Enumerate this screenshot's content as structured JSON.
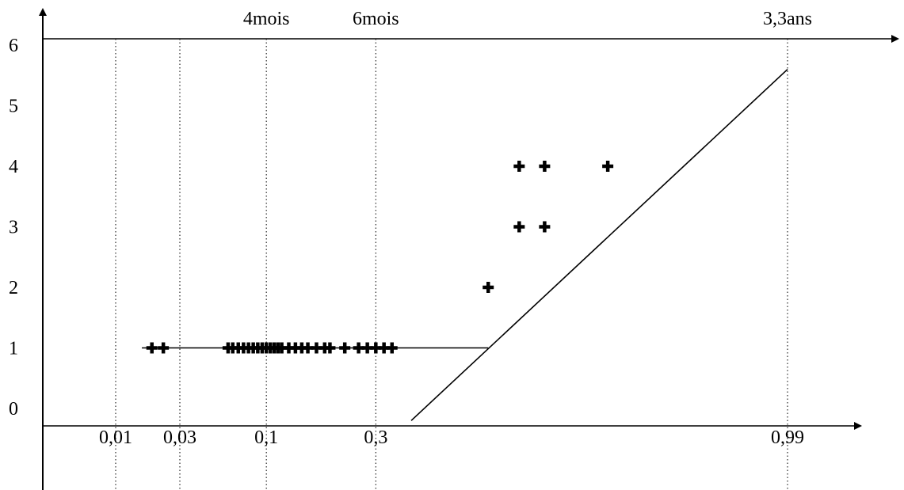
{
  "chart_data": {
    "type": "scatter",
    "title": "",
    "xlabel": "",
    "ylabel": "",
    "x_scale": "probability",
    "y_tick_labels": [
      "0",
      "1",
      "2",
      "3",
      "4",
      "5",
      "6"
    ],
    "ylim": [
      0,
      6
    ],
    "x_ticks": [
      {
        "value": 0.01,
        "label": "0,01"
      },
      {
        "value": 0.03,
        "label": "0,03"
      },
      {
        "value": 0.1,
        "label": "0,1"
      },
      {
        "value": 0.3,
        "label": "0,3"
      },
      {
        "value": 0.99,
        "label": "0,99"
      }
    ],
    "top_ticks": [
      {
        "value": 0.1,
        "label": "4mois"
      },
      {
        "value": 0.3,
        "label": "6mois"
      },
      {
        "value": 0.99,
        "label": "3,3ans"
      }
    ],
    "grid": "vertical-dotted",
    "series": [
      {
        "marker": "plus",
        "points": [
          [
            0.019,
            1
          ],
          [
            0.023,
            1
          ],
          [
            0.061,
            1
          ],
          [
            0.065,
            1
          ],
          [
            0.07,
            1
          ],
          [
            0.075,
            1
          ],
          [
            0.08,
            1
          ],
          [
            0.085,
            1
          ],
          [
            0.09,
            1
          ],
          [
            0.095,
            1
          ],
          [
            0.1,
            1
          ],
          [
            0.105,
            1
          ],
          [
            0.11,
            1
          ],
          [
            0.115,
            1
          ],
          [
            0.12,
            1
          ],
          [
            0.13,
            1
          ],
          [
            0.14,
            1
          ],
          [
            0.15,
            1
          ],
          [
            0.16,
            1
          ],
          [
            0.175,
            1
          ],
          [
            0.19,
            1
          ],
          [
            0.2,
            1
          ],
          [
            0.23,
            1
          ],
          [
            0.26,
            1
          ],
          [
            0.28,
            1
          ],
          [
            0.3,
            1
          ],
          [
            0.32,
            1
          ],
          [
            0.34,
            1
          ],
          [
            0.6,
            2
          ],
          [
            0.68,
            3
          ],
          [
            0.74,
            3
          ],
          [
            0.68,
            4
          ],
          [
            0.74,
            4
          ],
          [
            0.86,
            4
          ]
        ]
      }
    ],
    "fit_lines": [
      {
        "from": [
          0.016,
          1
        ],
        "to": [
          0.6,
          1
        ]
      },
      {
        "from": [
          0.39,
          -0.2
        ],
        "to": [
          0.99,
          5.6
        ]
      }
    ]
  }
}
